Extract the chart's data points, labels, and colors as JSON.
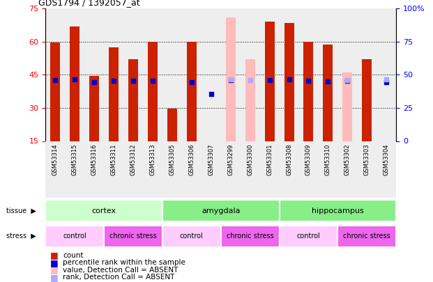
{
  "title": "GDS1794 / 1392057_at",
  "samples": [
    "GSM53314",
    "GSM53315",
    "GSM53316",
    "GSM53311",
    "GSM53312",
    "GSM53313",
    "GSM53305",
    "GSM53306",
    "GSM53307",
    "GSM53299",
    "GSM53300",
    "GSM53301",
    "GSM53308",
    "GSM53309",
    "GSM53310",
    "GSM53302",
    "GSM53303",
    "GSM53304"
  ],
  "count_values": [
    59.5,
    67.0,
    44.5,
    57.5,
    52.0,
    60.0,
    29.5,
    60.0,
    null,
    null,
    null,
    69.0,
    68.5,
    60.0,
    58.5,
    null,
    52.0,
    null
  ],
  "percentile_values": [
    46.0,
    46.5,
    44.5,
    45.5,
    45.5,
    45.5,
    null,
    44.5,
    35.5,
    46.0,
    null,
    46.0,
    46.5,
    45.5,
    45.0,
    45.5,
    null,
    44.5
  ],
  "absent_count_values": [
    null,
    null,
    null,
    null,
    null,
    null,
    null,
    null,
    null,
    71.0,
    52.0,
    null,
    null,
    null,
    null,
    46.0,
    null,
    null
  ],
  "absent_rank_values": [
    null,
    null,
    null,
    null,
    null,
    null,
    null,
    null,
    null,
    46.5,
    46.0,
    null,
    null,
    null,
    null,
    46.0,
    null,
    46.5
  ],
  "tissue_groups": [
    {
      "label": "cortex",
      "start": 0,
      "end": 6,
      "color": "#ccffcc"
    },
    {
      "label": "amygdala",
      "start": 6,
      "end": 12,
      "color": "#88ee88"
    },
    {
      "label": "hippocampus",
      "start": 12,
      "end": 18,
      "color": "#88ee88"
    }
  ],
  "stress_groups": [
    {
      "label": "control",
      "start": 0,
      "end": 3,
      "color": "#ffccff"
    },
    {
      "label": "chronic stress",
      "start": 3,
      "end": 6,
      "color": "#ee66ee"
    },
    {
      "label": "control",
      "start": 6,
      "end": 9,
      "color": "#ffccff"
    },
    {
      "label": "chronic stress",
      "start": 9,
      "end": 12,
      "color": "#ee66ee"
    },
    {
      "label": "control",
      "start": 12,
      "end": 15,
      "color": "#ffccff"
    },
    {
      "label": "chronic stress",
      "start": 15,
      "end": 18,
      "color": "#ee66ee"
    }
  ],
  "ylim": [
    15,
    75
  ],
  "yticks_left": [
    15,
    30,
    45,
    60,
    75
  ],
  "yticks_right": [
    0,
    25,
    50,
    75,
    100
  ],
  "bar_color": "#cc2200",
  "absent_bar_color": "#ffbbbb",
  "percentile_color": "#0000cc",
  "absent_rank_color": "#aaaaff",
  "bar_width": 0.5,
  "col_bg_even": "#e8e8e8",
  "col_bg_odd": "#d8d8d8"
}
